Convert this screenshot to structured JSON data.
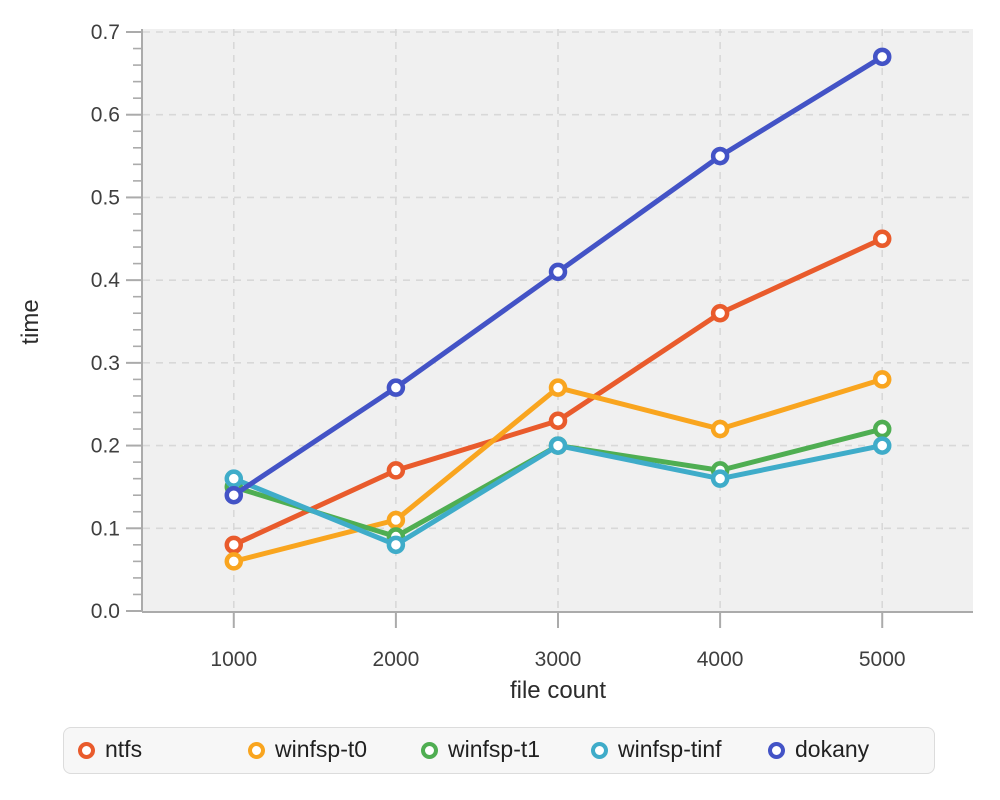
{
  "chart_data": {
    "type": "line",
    "title": "",
    "xlabel": "file count",
    "ylabel": "time",
    "x": [
      1000,
      2000,
      3000,
      4000,
      5000
    ],
    "series": [
      {
        "name": "ntfs",
        "color": "#e95b2c",
        "values": [
          0.08,
          0.17,
          0.23,
          0.36,
          0.45
        ]
      },
      {
        "name": "winfsp-t0",
        "color": "#f9a51f",
        "values": [
          0.06,
          0.11,
          0.27,
          0.22,
          0.28
        ]
      },
      {
        "name": "winfsp-t1",
        "color": "#4fae52",
        "values": [
          0.15,
          0.09,
          0.2,
          0.17,
          0.22
        ]
      },
      {
        "name": "winfsp-tinf",
        "color": "#3facc9",
        "values": [
          0.16,
          0.08,
          0.2,
          0.16,
          0.2
        ]
      },
      {
        "name": "dokany",
        "color": "#4353c6",
        "values": [
          0.14,
          0.27,
          0.41,
          0.55,
          0.67
        ]
      }
    ],
    "xlim": [
      440,
      5560
    ],
    "ylim": [
      0,
      0.7
    ],
    "xticks": [
      1000,
      2000,
      3000,
      4000,
      5000
    ],
    "xtick_labels": [
      "1000",
      "2000",
      "3000",
      "4000",
      "5000"
    ],
    "yticks": [
      0,
      0.1,
      0.2,
      0.3,
      0.4,
      0.5,
      0.6,
      0.7
    ],
    "ytick_labels": [
      "0.0",
      "0.1",
      "0.2",
      "0.3",
      "0.4",
      "0.5",
      "0.6",
      "0.7"
    ],
    "y_minor_step": 0.02,
    "grid": "dashed",
    "legend_position": "bottom"
  },
  "colors": {
    "plot_bg": "#f0f0f0",
    "grid": "#d8d8d8",
    "axis": "#ababab",
    "tick_text": "#3f3f3f",
    "label_text": "#2b2b2b",
    "legend_bg": "#f7f7f7",
    "legend_border": "#dcdcdc",
    "legend_text": "#212121"
  }
}
